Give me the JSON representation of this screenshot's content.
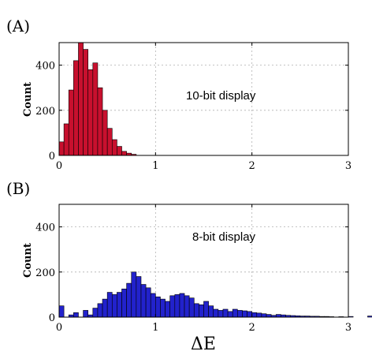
{
  "chart_data": [
    {
      "type": "bar",
      "panel_label": "(A)",
      "annotation": "10-bit display",
      "ylabel": "Count",
      "xlabel": "",
      "xlim": [
        0,
        3
      ],
      "ylim": [
        0,
        500
      ],
      "xticks": [
        "0",
        "1",
        "2",
        "3"
      ],
      "yticks": [
        "0",
        "200",
        "400"
      ],
      "grid": true,
      "color": "#c8102e",
      "bin_width": 0.05,
      "bin_start": 0.0,
      "values": [
        60,
        140,
        290,
        420,
        500,
        470,
        380,
        410,
        300,
        200,
        120,
        70,
        40,
        18,
        10,
        5
      ]
    },
    {
      "type": "bar",
      "panel_label": "(B)",
      "annotation": "8-bit display",
      "ylabel": "Count",
      "xlabel": "ΔE",
      "xlim": [
        0,
        3
      ],
      "ylim": [
        0,
        500
      ],
      "xticks": [
        "0",
        "1",
        "2",
        "3"
      ],
      "yticks": [
        "0",
        "200",
        "400"
      ],
      "grid": true,
      "color": "#2222cc",
      "bin_width": 0.05,
      "bin_start": 0.0,
      "values": [
        50,
        0,
        10,
        20,
        0,
        30,
        10,
        40,
        60,
        80,
        110,
        100,
        110,
        125,
        150,
        200,
        180,
        145,
        130,
        105,
        90,
        80,
        70,
        95,
        100,
        105,
        95,
        85,
        60,
        55,
        70,
        50,
        35,
        30,
        35,
        25,
        35,
        30,
        28,
        25,
        20,
        18,
        15,
        12,
        8,
        12,
        10,
        8,
        7,
        6,
        5,
        5,
        4,
        4,
        3,
        3,
        2,
        0,
        2,
        0,
        3,
        0,
        0,
        0,
        5,
        5,
        0,
        3,
        0,
        5,
        4,
        5,
        5
      ]
    }
  ]
}
